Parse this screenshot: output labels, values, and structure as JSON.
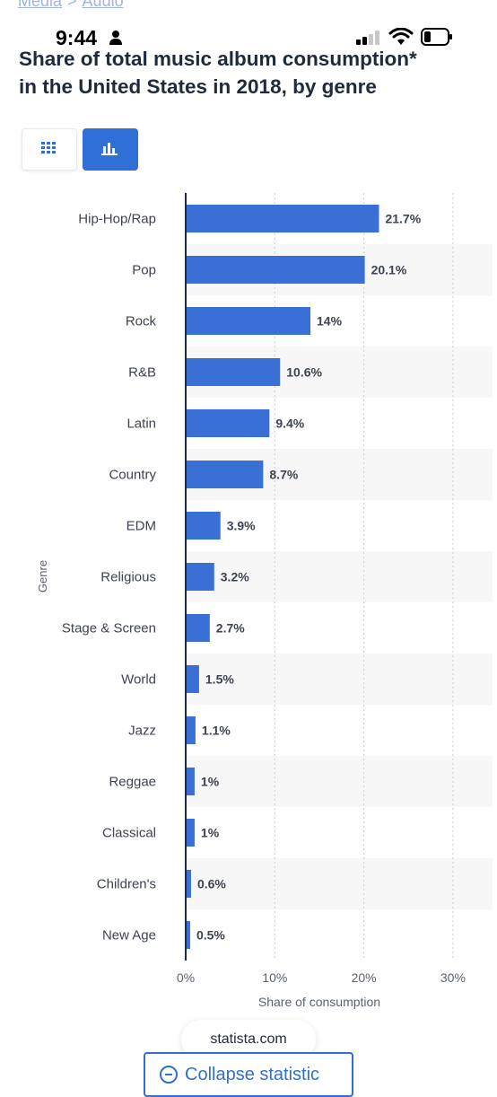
{
  "breadcrumb": {
    "items": [
      "Media",
      "Audio"
    ],
    "separator": ">"
  },
  "status_bar": {
    "time": "9:44"
  },
  "chart_data": {
    "type": "bar",
    "orientation": "horizontal",
    "title_line1": "Share of total music album consumption*",
    "title_line2": "in the United States in 2018, by genre",
    "xlabel": "Share of consumption",
    "ylabel": "Genre",
    "xlim": [
      0,
      30
    ],
    "xticks": [
      "0%",
      "10%",
      "20%",
      "30%"
    ],
    "xtick_values": [
      0,
      10,
      20,
      30
    ],
    "grid": true,
    "bar_color": "#3a6fd6",
    "categories": [
      "Hip-Hop/Rap",
      "Pop",
      "Rock",
      "R&B",
      "Latin",
      "Country",
      "EDM",
      "Religious",
      "Stage & Screen",
      "World",
      "Jazz",
      "Reggae",
      "Classical",
      "Children's",
      "New Age"
    ],
    "values": [
      21.7,
      20.1,
      14,
      10.6,
      9.4,
      8.7,
      3.9,
      3.2,
      2.7,
      1.5,
      1.1,
      1,
      1,
      0.6,
      0.5
    ],
    "value_labels": [
      "21.7%",
      "20.1%",
      "14%",
      "10.6%",
      "9.4%",
      "8.7%",
      "3.9%",
      "3.2%",
      "2.7%",
      "1.5%",
      "1.1%",
      "1%",
      "1%",
      "0.6%",
      "0.5%"
    ]
  },
  "footer": {
    "source": "statista.com",
    "collapse_label": "Collapse statistic"
  },
  "colors": {
    "accent": "#2f6fd6",
    "title": "#1f2a3c",
    "stripe": "#f7f7f7"
  }
}
